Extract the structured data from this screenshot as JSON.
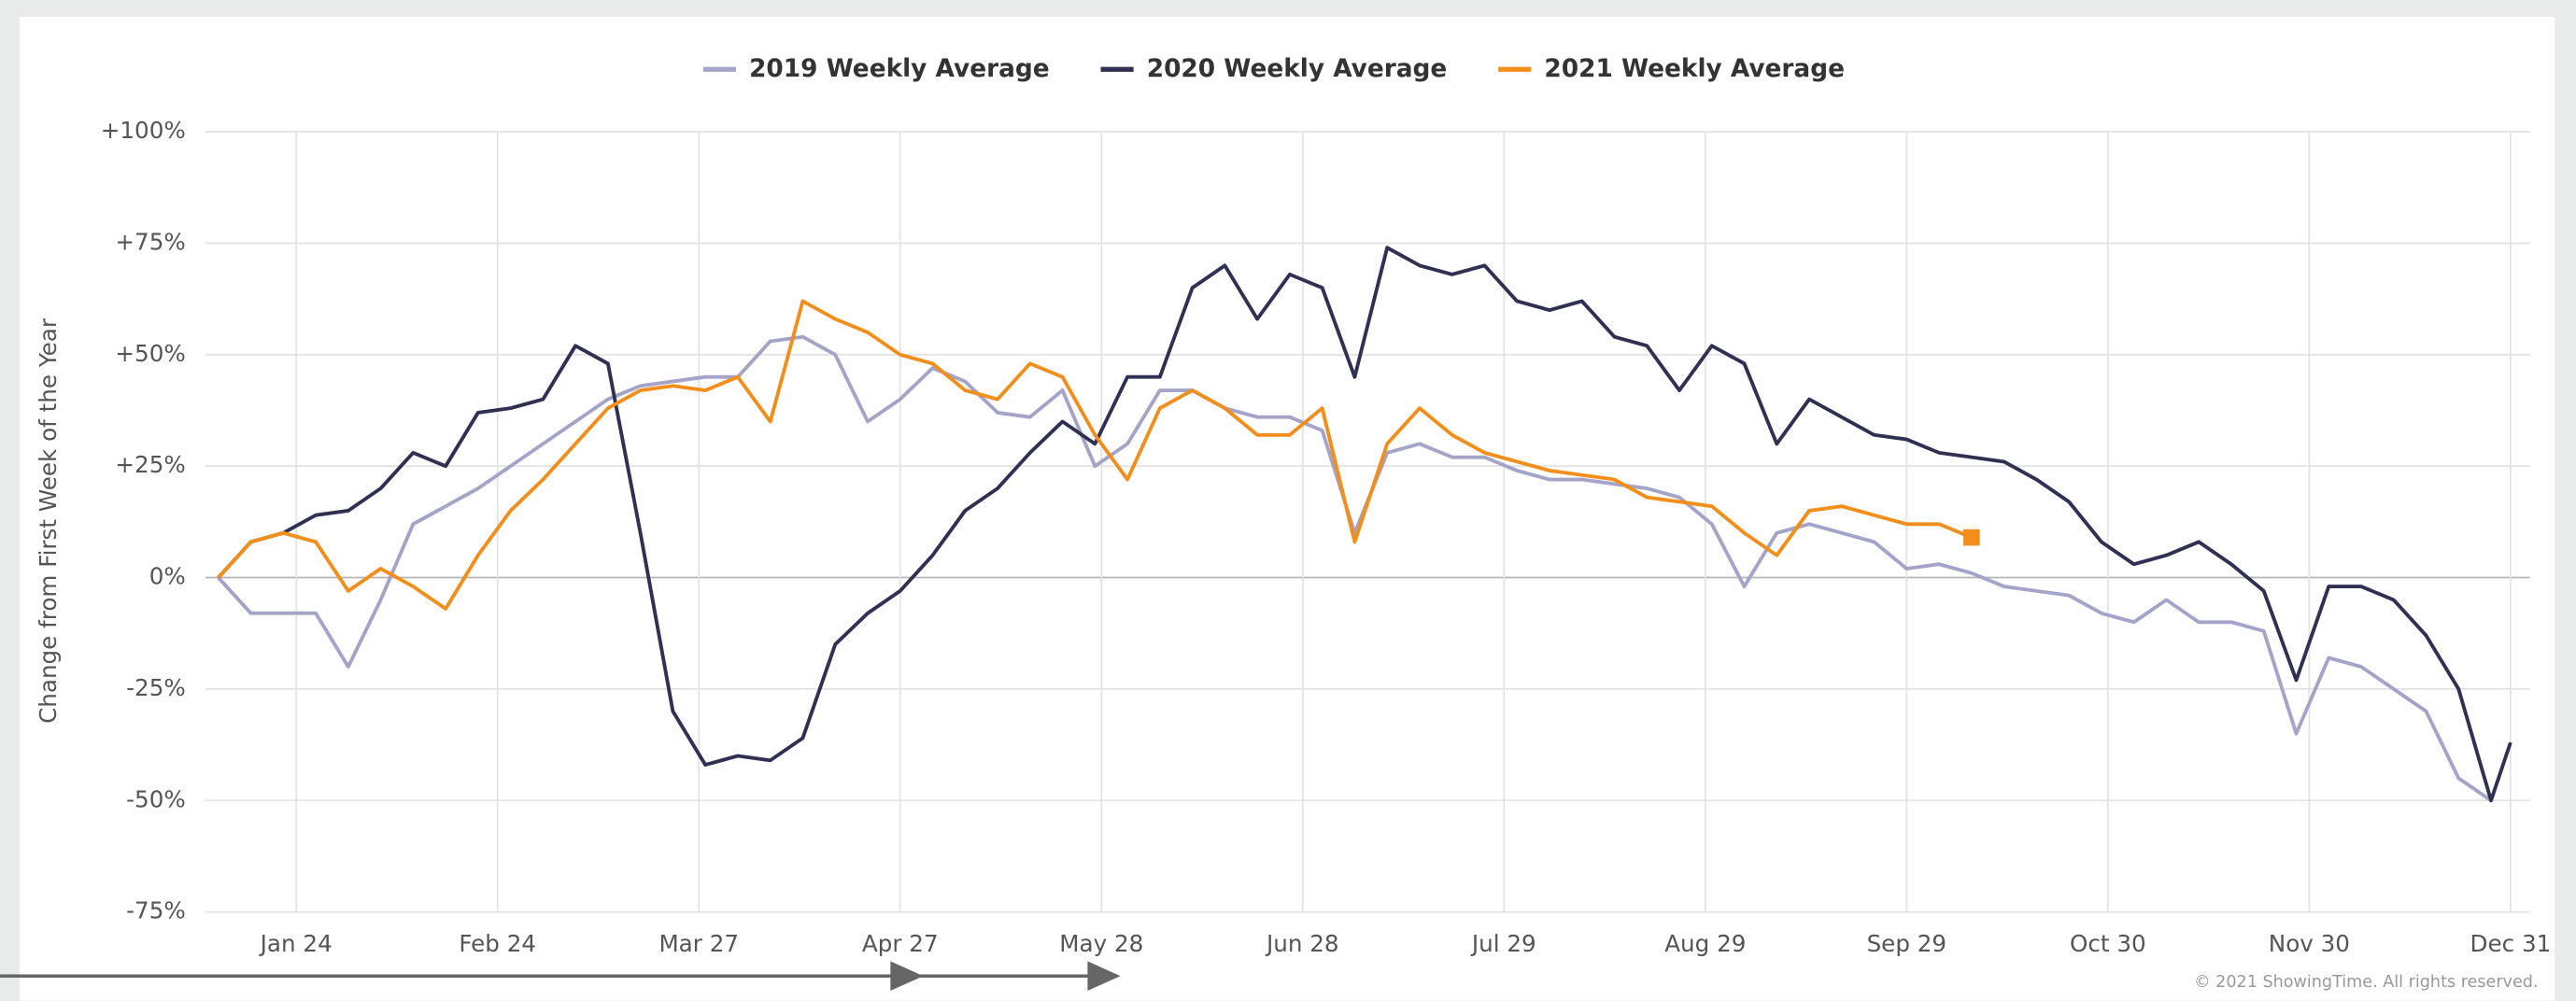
{
  "chart_data": {
    "type": "line",
    "y_label": "Change from First Week of the Year",
    "credit": "© 2021 ShowingTime. All rights reserved.",
    "legend": "top",
    "grid": true,
    "xlim": [
      10,
      368
    ],
    "xticks": [
      {
        "value": 24,
        "label": "Jan 24"
      },
      {
        "value": 55,
        "label": "Feb 24"
      },
      {
        "value": 86,
        "label": "Mar 27"
      },
      {
        "value": 117,
        "label": "Apr 27"
      },
      {
        "value": 148,
        "label": "May 28"
      },
      {
        "value": 179,
        "label": "Jun 28"
      },
      {
        "value": 210,
        "label": "Jul 29"
      },
      {
        "value": 241,
        "label": "Aug 29"
      },
      {
        "value": 272,
        "label": "Sep 29"
      },
      {
        "value": 303,
        "label": "Oct 30"
      },
      {
        "value": 334,
        "label": "Nov 30"
      },
      {
        "value": 365,
        "label": "Dec 31"
      }
    ],
    "ylim": [
      -75,
      100
    ],
    "yticks": [
      {
        "value": 100,
        "label": "+100%"
      },
      {
        "value": 75,
        "label": "+75%"
      },
      {
        "value": 50,
        "label": "+50%"
      },
      {
        "value": 25,
        "label": "+25%"
      },
      {
        "value": 0,
        "label": "0%"
      },
      {
        "value": -25,
        "label": "-25%"
      },
      {
        "value": -50,
        "label": "-50%"
      },
      {
        "value": -75,
        "label": "-75%"
      }
    ],
    "x": [
      12,
      17,
      22,
      27,
      32,
      37,
      42,
      47,
      52,
      57,
      62,
      67,
      72,
      77,
      82,
      87,
      92,
      97,
      102,
      107,
      112,
      117,
      122,
      127,
      132,
      137,
      142,
      147,
      152,
      157,
      162,
      167,
      172,
      177,
      182,
      187,
      192,
      197,
      202,
      207,
      212,
      217,
      222,
      227,
      232,
      237,
      242,
      247,
      252,
      257,
      262,
      267,
      272,
      277,
      282,
      287,
      292,
      297,
      302,
      307,
      312,
      317,
      322,
      327,
      332,
      337,
      342,
      347,
      352,
      357,
      362,
      365
    ],
    "series": [
      {
        "name": "2019 Weekly Average",
        "color": "#a4a3c8",
        "values": [
          0,
          -8,
          -8,
          -8,
          -20,
          -5,
          12,
          16,
          20,
          25,
          30,
          35,
          40,
          43,
          44,
          45,
          45,
          53,
          54,
          50,
          35,
          40,
          47,
          44,
          37,
          36,
          42,
          25,
          30,
          42,
          42,
          38,
          36,
          36,
          33,
          10,
          28,
          30,
          27,
          27,
          24,
          22,
          22,
          21,
          20,
          18,
          12,
          -2,
          10,
          12,
          10,
          8,
          2,
          3,
          1,
          -2,
          -3,
          -4,
          -8,
          -10,
          -5,
          -10,
          -10,
          -12,
          -35,
          -18,
          -20,
          -25,
          -30,
          -45,
          -50,
          null
        ]
      },
      {
        "name": "2020 Weekly Average",
        "color": "#2f3052",
        "values": [
          0,
          8,
          10,
          14,
          15,
          20,
          28,
          25,
          37,
          38,
          40,
          52,
          48,
          10,
          -30,
          -42,
          -40,
          -41,
          -36,
          -15,
          -8,
          -3,
          5,
          15,
          20,
          28,
          35,
          30,
          45,
          45,
          65,
          70,
          58,
          68,
          65,
          45,
          74,
          70,
          68,
          70,
          62,
          60,
          62,
          54,
          52,
          42,
          52,
          48,
          30,
          40,
          36,
          32,
          31,
          28,
          27,
          26,
          22,
          17,
          8,
          3,
          5,
          8,
          3,
          -3,
          -23,
          -2,
          -2,
          -5,
          -13,
          -25,
          -50,
          -37
        ]
      },
      {
        "name": "2021 Weekly Average",
        "color": "#f28e1c",
        "end_marker": "square",
        "values": [
          0,
          8,
          10,
          8,
          -3,
          2,
          -2,
          -7,
          5,
          15,
          22,
          30,
          38,
          42,
          43,
          42,
          45,
          35,
          62,
          58,
          55,
          50,
          48,
          42,
          40,
          48,
          45,
          32,
          22,
          38,
          42,
          38,
          32,
          32,
          38,
          8,
          30,
          38,
          32,
          28,
          26,
          24,
          23,
          22,
          18,
          17,
          16,
          10,
          5,
          15,
          16,
          14,
          12,
          12,
          9,
          null,
          null,
          null,
          null,
          null,
          null,
          null,
          null,
          null,
          null,
          null,
          null,
          null,
          null,
          null,
          null,
          null
        ]
      }
    ]
  }
}
